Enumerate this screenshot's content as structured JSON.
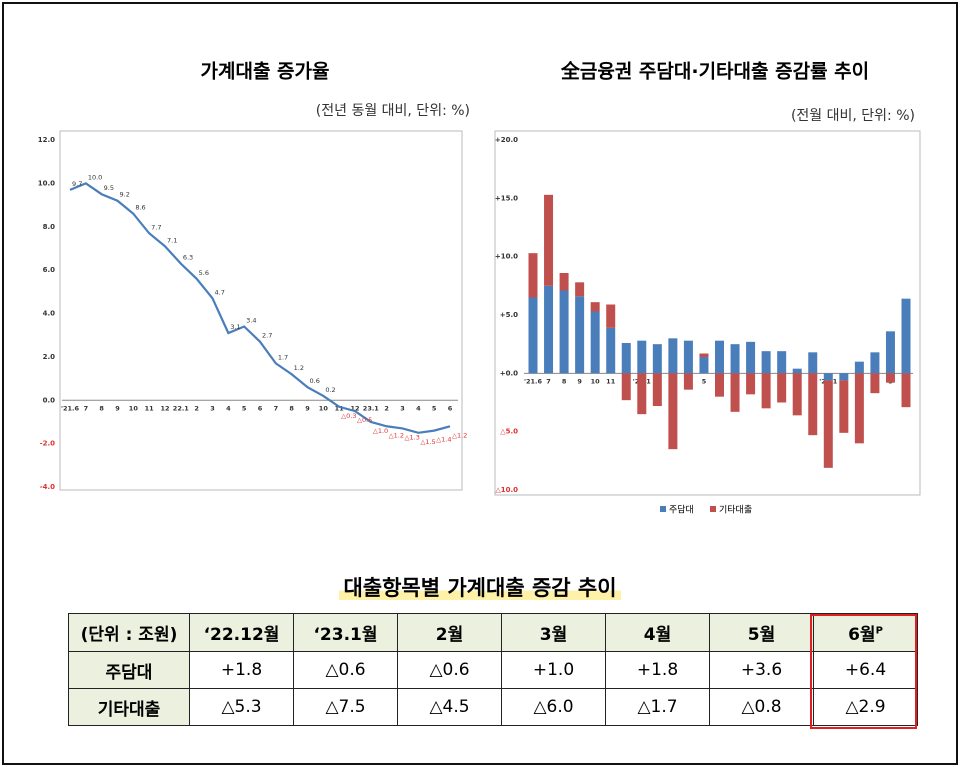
{
  "chart_data": [
    {
      "type": "line",
      "title": "가계대출 증가율",
      "subtitle": "(전년 동월 대비, 단위: %)",
      "categories": [
        "'21.6",
        "7",
        "8",
        "9",
        "10",
        "11",
        "12",
        "22.1",
        "2",
        "3",
        "4",
        "5",
        "6",
        "7",
        "8",
        "9",
        "10",
        "11",
        "12",
        "23.1",
        "2",
        "3",
        "4",
        "5",
        "6"
      ],
      "values": [
        9.7,
        10.0,
        9.5,
        9.2,
        8.6,
        7.7,
        7.1,
        6.3,
        5.6,
        4.7,
        3.1,
        3.4,
        2.7,
        1.7,
        1.2,
        0.6,
        0.2,
        -0.3,
        -0.5,
        -1.0,
        -1.2,
        -1.3,
        -1.5,
        -1.4,
        -1.2
      ],
      "value_labels": [
        "9.7",
        "10.0",
        "9.5",
        "9.2",
        "8.6",
        "7.7",
        "7.1",
        "6.3",
        "5.6",
        "4.7",
        "3.1",
        "3.4",
        "2.7",
        "1.7",
        "1.2",
        "0.6",
        "0.2",
        "△0.3",
        "△0.5",
        "△1.0",
        "△1.2",
        "△1.3",
        "△1.5",
        "△1.4",
        "△1.2"
      ],
      "color": "#4a7ebb",
      "ylim": [
        -4,
        12
      ],
      "yticks": [
        {
          "value": 12,
          "label": "12.0"
        },
        {
          "value": 10,
          "label": "10.0"
        },
        {
          "value": 8,
          "label": "8.0"
        },
        {
          "value": 6,
          "label": "6.0"
        },
        {
          "value": 4,
          "label": "4.0"
        },
        {
          "value": 2,
          "label": "2.0"
        },
        {
          "value": 0,
          "label": "0.0"
        },
        {
          "value": -2,
          "label": "-2.0"
        },
        {
          "value": -4,
          "label": "-4.0"
        }
      ],
      "grid": false
    },
    {
      "type": "stacked_bar",
      "title": "全금융권 주담대·기타대출 증감률 추이",
      "subtitle": "(전월 대비, 단위: %)",
      "categories": [
        "'21.6",
        "7",
        "8",
        "9",
        "10",
        "11",
        "12",
        "'22.1",
        "2",
        "3",
        "4",
        "5",
        "6",
        "7",
        "8",
        "9",
        "10",
        "11",
        "12",
        "'23.1",
        "2",
        "3",
        "4",
        "5",
        "6"
      ],
      "series": [
        {
          "name": "주담대",
          "color": "#4a7ebb",
          "values": [
            6.5,
            7.5,
            7.1,
            6.6,
            5.3,
            3.9,
            2.6,
            2.8,
            2.5,
            3.0,
            2.8,
            1.4,
            2.8,
            2.5,
            2.7,
            1.9,
            1.9,
            0.4,
            1.8,
            -0.6,
            -0.6,
            1.0,
            1.8,
            3.6,
            6.4
          ]
        },
        {
          "name": "기타대출",
          "color": "#c0504d",
          "values": [
            3.8,
            7.8,
            1.5,
            1.2,
            0.8,
            2.0,
            -2.3,
            -3.5,
            -2.8,
            -6.5,
            -1.4,
            0.3,
            -2.0,
            -3.3,
            -1.8,
            -3.0,
            -2.5,
            -3.6,
            -5.3,
            -7.5,
            -4.5,
            -6.0,
            -1.7,
            -0.8,
            -2.9
          ]
        }
      ],
      "ylim": [
        -10,
        20
      ],
      "yticks": [
        {
          "value": 20,
          "label": "+20.0"
        },
        {
          "value": 15,
          "label": "+15.0"
        },
        {
          "value": 10,
          "label": "+10.0"
        },
        {
          "value": 5,
          "label": "+5.0"
        },
        {
          "value": 0,
          "label": "+0.0"
        },
        {
          "value": -5,
          "label": "△5.0"
        },
        {
          "value": -10,
          "label": "△10.0"
        }
      ],
      "legend": "bottom",
      "grid": false
    }
  ],
  "table": {
    "title": "대출항목별 가계대출 증감 추이",
    "header": [
      "(단위 : 조원)",
      "‘22.12월",
      "‘23.1월",
      "2월",
      "3월",
      "4월",
      "5월",
      "6월"
    ],
    "header_sup": "P",
    "rows": [
      [
        "주담대",
        "+1.8",
        "△0.6",
        "△0.6",
        "+1.0",
        "+1.8",
        "+3.6",
        "+6.4"
      ],
      [
        "기타대출",
        "△5.3",
        "△7.5",
        "△4.5",
        "△6.0",
        "△1.7",
        "△0.8",
        "△2.9"
      ]
    ]
  }
}
